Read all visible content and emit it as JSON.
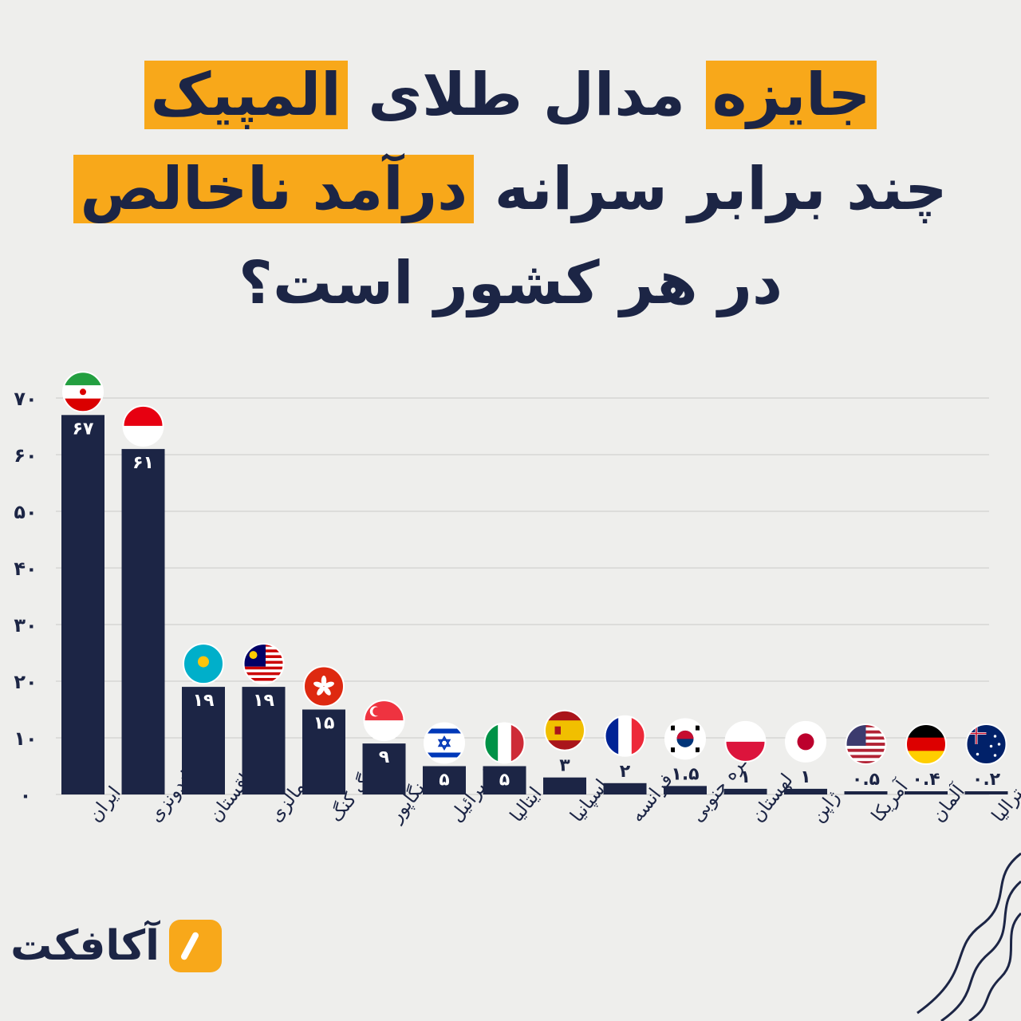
{
  "title": {
    "line1_a": "جایزه",
    "line1_b": " مدال طلای ",
    "line1_c": "المپیک",
    "line2_a": "چند برابر سرانه ",
    "line2_b": "درآمد ناخالص",
    "line3": "در هر کشور است؟"
  },
  "brand": {
    "name": "آکافکت"
  },
  "colors": {
    "bar": "#1c2545",
    "accent": "#f8a81a",
    "background": "#eeeeec",
    "grid": "#c9c9c9"
  },
  "chart_data": {
    "type": "bar",
    "categories": [
      "ایران",
      "اندونزی",
      "قزاقستان",
      "مالزی",
      "هنگ کنگ",
      "سنگاپور",
      "اسرائیل",
      "ایتالیا",
      "اسپانیا",
      "فرانسه",
      "کره جنوبی",
      "لهستان",
      "ژاپن",
      "آمریکا",
      "آلمان",
      "استرالیا"
    ],
    "values": [
      67,
      61,
      19,
      19,
      15,
      9,
      5,
      5,
      3,
      2,
      1.5,
      1,
      1,
      0.5,
      0.4,
      0.2
    ],
    "value_labels": [
      "۶۷",
      "۶۱",
      "۱۹",
      "۱۹",
      "۱۵",
      "۹",
      "۵",
      "۵",
      "۳",
      "۲",
      "۱.۵",
      "۱",
      "۱",
      "۰.۵",
      "۰.۴",
      "۰.۲"
    ],
    "flags": [
      "iran-flag-icon",
      "indonesia-flag-icon",
      "kazakhstan-flag-icon",
      "malaysia-flag-icon",
      "hong-kong-flag-icon",
      "singapore-flag-icon",
      "israel-flag-icon",
      "italy-flag-icon",
      "spain-flag-icon",
      "france-flag-icon",
      "south-korea-flag-icon",
      "poland-flag-icon",
      "japan-flag-icon",
      "usa-flag-icon",
      "germany-flag-icon",
      "australia-flag-icon"
    ],
    "ylim": [
      0,
      70
    ],
    "yticks": [
      0,
      10,
      20,
      30,
      40,
      50,
      60,
      70
    ],
    "ytick_labels": [
      "۰",
      "۱۰",
      "۲۰",
      "۳۰",
      "۴۰",
      "۵۰",
      "۶۰",
      "۷۰"
    ],
    "grid": true
  }
}
